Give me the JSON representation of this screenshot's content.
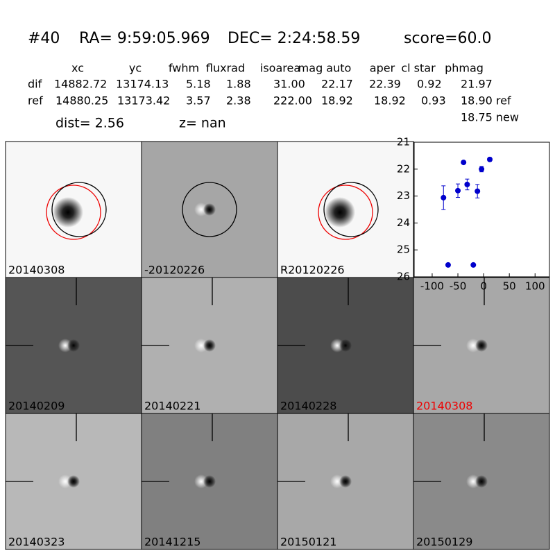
{
  "header": {
    "id": "#40",
    "ra": "RA= 9:59:05.969",
    "dec": "DEC= 2:24:58.59",
    "score": "score=60.0"
  },
  "table": {
    "columns": [
      "xc",
      "yc",
      "fwhm",
      "fluxrad",
      "isoarea",
      "mag auto",
      "aper",
      "cl star",
      "phmag"
    ],
    "rows": [
      [
        "dif",
        "14882.72",
        "13174.13",
        "5.18",
        "1.88",
        "31.00",
        "22.17",
        "22.39",
        "0.92",
        "21.97"
      ],
      [
        "ref",
        "14880.25",
        "13173.42",
        "3.57",
        "2.38",
        "222.00",
        "18.92",
        "18.92",
        "0.93",
        "18.90 ref"
      ]
    ],
    "extra": "18.75 new"
  },
  "dist": "dist=  2.56",
  "z": "z=   nan",
  "panels": [
    "20140308",
    "-20120226",
    "R20120226",
    "20140209",
    "20140221",
    "20140228",
    "20140308",
    "20140323",
    "20141215",
    "20150121",
    "20150129"
  ],
  "chart_data": {
    "type": "scatter",
    "x": [
      -78,
      -69,
      -50,
      -39,
      -32,
      -20,
      -12,
      -4,
      12
    ],
    "values": [
      23.06,
      25.56,
      22.8,
      21.75,
      22.57,
      25.56,
      22.82,
      22.0,
      21.64
    ],
    "errors": [
      0.44,
      0.03,
      0.25,
      0.05,
      0.2,
      0.03,
      0.25,
      0.1,
      0.07
    ],
    "color": "#0000cc",
    "xlim": [
      -135,
      128
    ],
    "ylim": [
      26,
      21
    ],
    "y_inverted": true,
    "xticks": [
      -100,
      -50,
      0,
      50,
      100
    ],
    "yticks": [
      21,
      22,
      23,
      24,
      25,
      26
    ]
  }
}
